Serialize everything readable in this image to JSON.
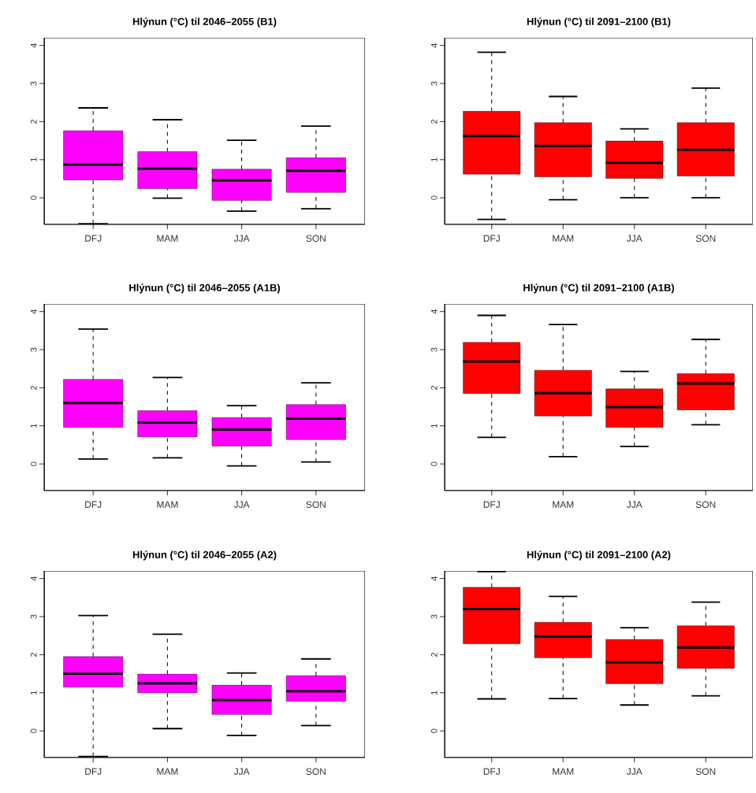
{
  "chart_data": [
    {
      "type": "box",
      "title": "Hlýnun (°C) til 2046–2055 (B1)",
      "categories": [
        "DFJ",
        "MAM",
        "JJA",
        "SON"
      ],
      "color": "#ff00ff",
      "ylim": [
        -0.7,
        4.2
      ],
      "yticks": [
        0,
        1,
        2,
        3,
        4
      ],
      "boxes": [
        {
          "low": -0.68,
          "q1": 0.47,
          "median": 0.87,
          "q3": 1.76,
          "high": 2.36
        },
        {
          "low": -0.01,
          "q1": 0.24,
          "median": 0.77,
          "q3": 1.21,
          "high": 2.05
        },
        {
          "low": -0.35,
          "q1": -0.07,
          "median": 0.46,
          "q3": 0.75,
          "high": 1.51
        },
        {
          "low": -0.29,
          "q1": 0.14,
          "median": 0.71,
          "q3": 1.05,
          "high": 1.88
        }
      ]
    },
    {
      "type": "box",
      "title": "Hlýnun (°C) til 2091–2100 (B1)",
      "categories": [
        "DFJ",
        "MAM",
        "JJA",
        "SON"
      ],
      "color": "#ff0000",
      "ylim": [
        -0.7,
        4.2
      ],
      "yticks": [
        0,
        1,
        2,
        3,
        4
      ],
      "boxes": [
        {
          "low": -0.57,
          "q1": 0.62,
          "median": 1.62,
          "q3": 2.27,
          "high": 3.82
        },
        {
          "low": -0.05,
          "q1": 0.55,
          "median": 1.36,
          "q3": 1.97,
          "high": 2.66
        },
        {
          "low": 0.0,
          "q1": 0.51,
          "median": 0.92,
          "q3": 1.49,
          "high": 1.81
        },
        {
          "low": 0.0,
          "q1": 0.57,
          "median": 1.26,
          "q3": 1.97,
          "high": 2.88
        }
      ]
    },
    {
      "type": "box",
      "title": "Hlýnun (°C) til 2046–2055 (A1B)",
      "categories": [
        "DFJ",
        "MAM",
        "JJA",
        "SON"
      ],
      "color": "#ff00ff",
      "ylim": [
        -0.7,
        4.2
      ],
      "yticks": [
        0,
        1,
        2,
        3,
        4
      ],
      "boxes": [
        {
          "low": 0.13,
          "q1": 0.96,
          "median": 1.6,
          "q3": 2.22,
          "high": 3.54
        },
        {
          "low": 0.16,
          "q1": 0.71,
          "median": 1.09,
          "q3": 1.4,
          "high": 2.27
        },
        {
          "low": -0.05,
          "q1": 0.47,
          "median": 0.9,
          "q3": 1.22,
          "high": 1.53
        },
        {
          "low": 0.05,
          "q1": 0.64,
          "median": 1.19,
          "q3": 1.56,
          "high": 2.13
        }
      ]
    },
    {
      "type": "box",
      "title": "Hlýnun (°C) til 2091–2100 (A1B)",
      "categories": [
        "DFJ",
        "MAM",
        "JJA",
        "SON"
      ],
      "color": "#ff0000",
      "ylim": [
        -0.7,
        4.2
      ],
      "yticks": [
        0,
        1,
        2,
        3,
        4
      ],
      "boxes": [
        {
          "low": 0.7,
          "q1": 1.85,
          "median": 2.69,
          "q3": 3.19,
          "high": 3.9
        },
        {
          "low": 0.19,
          "q1": 1.26,
          "median": 1.86,
          "q3": 2.46,
          "high": 3.66
        },
        {
          "low": 0.46,
          "q1": 0.96,
          "median": 1.49,
          "q3": 1.97,
          "high": 2.43
        },
        {
          "low": 1.03,
          "q1": 1.42,
          "median": 2.11,
          "q3": 2.37,
          "high": 3.27
        }
      ]
    },
    {
      "type": "box",
      "title": "Hlýnun (°C) til 2046–2055 (A2)",
      "categories": [
        "DFJ",
        "MAM",
        "JJA",
        "SON"
      ],
      "color": "#ff00ff",
      "ylim": [
        -0.7,
        4.2
      ],
      "yticks": [
        0,
        1,
        2,
        3,
        4
      ],
      "boxes": [
        {
          "low": -0.67,
          "q1": 1.15,
          "median": 1.5,
          "q3": 1.95,
          "high": 3.03
        },
        {
          "low": 0.06,
          "q1": 1.0,
          "median": 1.25,
          "q3": 1.49,
          "high": 2.54
        },
        {
          "low": -0.12,
          "q1": 0.43,
          "median": 0.81,
          "q3": 1.2,
          "high": 1.52
        },
        {
          "low": 0.14,
          "q1": 0.78,
          "median": 1.04,
          "q3": 1.45,
          "high": 1.89
        }
      ]
    },
    {
      "type": "box",
      "title": "Hlýnun (°C) til 2091–2100 (A2)",
      "categories": [
        "DFJ",
        "MAM",
        "JJA",
        "SON"
      ],
      "color": "#ff0000",
      "ylim": [
        -0.7,
        4.2
      ],
      "yticks": [
        0,
        1,
        2,
        3,
        4
      ],
      "boxes": [
        {
          "low": 0.84,
          "q1": 2.29,
          "median": 3.2,
          "q3": 3.77,
          "high": 4.18
        },
        {
          "low": 0.85,
          "q1": 1.92,
          "median": 2.48,
          "q3": 2.85,
          "high": 3.53
        },
        {
          "low": 0.68,
          "q1": 1.24,
          "median": 1.8,
          "q3": 2.4,
          "high": 2.71
        },
        {
          "low": 0.92,
          "q1": 1.64,
          "median": 2.19,
          "q3": 2.76,
          "high": 3.38
        }
      ]
    }
  ]
}
